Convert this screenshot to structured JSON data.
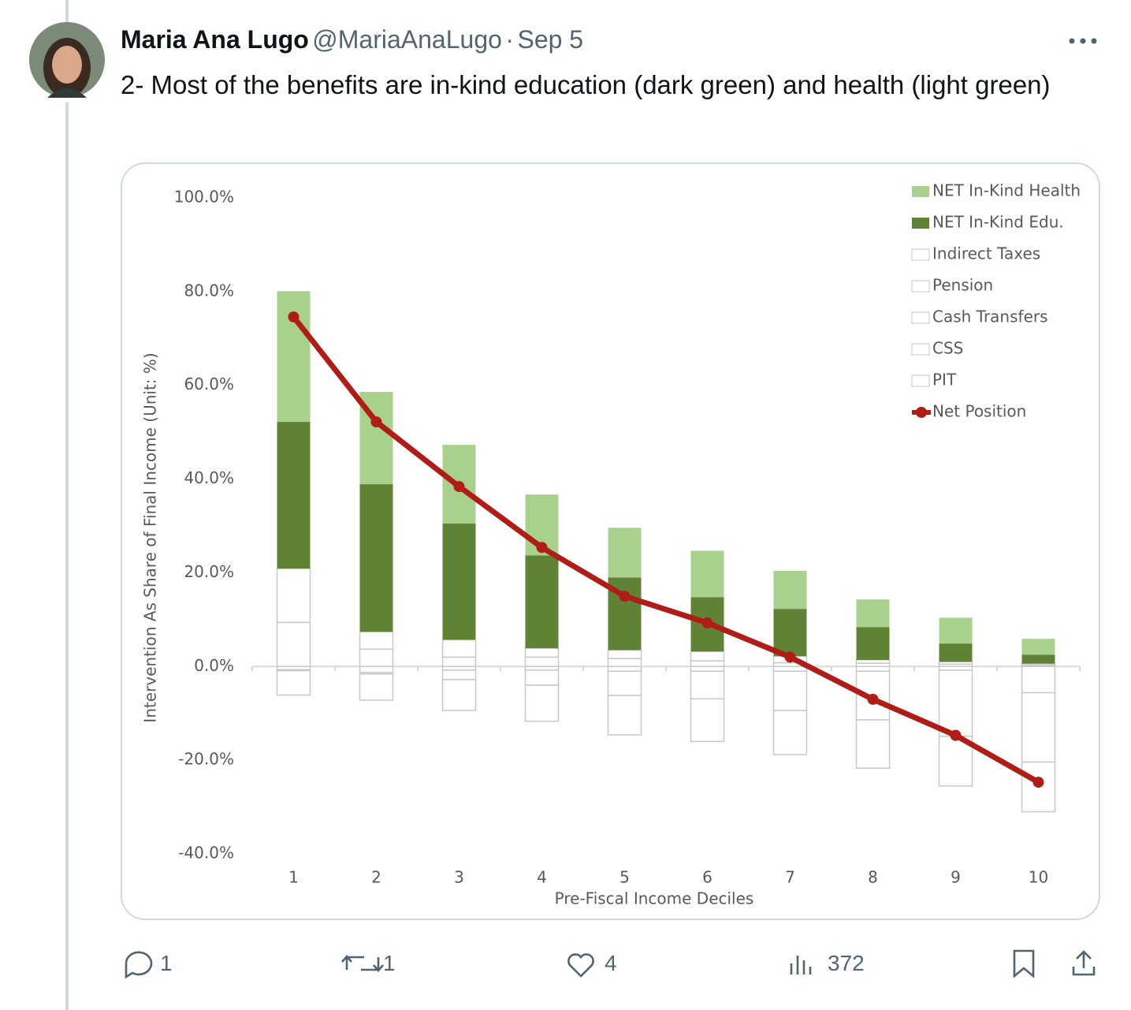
{
  "tweet": {
    "author": "Maria Ana Lugo",
    "handle": "@MariaAnaLugo",
    "separator": "·",
    "date": "Sep 5",
    "text": "2- Most of the benefits are in-kind education (dark green) and health (light green)",
    "replies": 1,
    "retweets": 1,
    "likes": 4,
    "views": 372
  },
  "chart_data": {
    "type": "bar",
    "stacked": true,
    "y_label": "Intervention As Share of Final Income (Unit: %)",
    "x_label": "Pre-Fiscal Income  Deciles",
    "categories": [
      "1",
      "2",
      "3",
      "4",
      "5",
      "6",
      "7",
      "8",
      "9",
      "10"
    ],
    "ylim": [
      -40,
      100
    ],
    "yticks": [
      {
        "value": -40,
        "label": "-40.0%"
      },
      {
        "value": -20,
        "label": "-20.0%"
      },
      {
        "value": 0,
        "label": "0.0%"
      },
      {
        "value": 20,
        "label": "20.0%"
      },
      {
        "value": 40,
        "label": "40.0%"
      },
      {
        "value": 60,
        "label": "60.0%"
      },
      {
        "value": 80,
        "label": "80.0%"
      },
      {
        "value": 100,
        "label": "100.0%"
      }
    ],
    "legend_position": "top-right",
    "series": [
      {
        "name": "NET In-Kind Health",
        "color": "#a9d18e",
        "values": [
          27.9,
          19.7,
          16.8,
          13.0,
          10.6,
          9.9,
          8.1,
          5.9,
          5.5,
          3.4
        ]
      },
      {
        "name": "NET In-Kind Edu.",
        "color": "#608234",
        "values": [
          31.3,
          31.5,
          24.8,
          19.8,
          15.5,
          11.6,
          10.1,
          7.0,
          3.9,
          1.9
        ]
      },
      {
        "name": "Indirect Taxes",
        "color": "#ffffff",
        "values": [
          -5.2,
          -5.6,
          -6.6,
          -7.7,
          -8.4,
          -9.1,
          -9.4,
          -10.3,
          -10.6,
          -10.6
        ]
      },
      {
        "name": "Pension",
        "color": "#ffffff",
        "values": [
          11.5,
          3.7,
          3.7,
          1.9,
          1.8,
          2.0,
          1.4,
          0.7,
          0.5,
          0.3
        ]
      },
      {
        "name": "Cash Transfers",
        "color": "#ffffff",
        "values": [
          9.4,
          3.7,
          2.0,
          2.0,
          1.7,
          1.2,
          0.8,
          0.7,
          0.5,
          0.3
        ]
      },
      {
        "name": "CSS",
        "color": "#ffffff",
        "values": [
          -0.2,
          -0.3,
          -2.0,
          -3.2,
          -5.2,
          -5.9,
          -8.4,
          -10.4,
          -14.1,
          -14.8
        ]
      },
      {
        "name": "PIT",
        "color": "#ffffff",
        "values": [
          -0.7,
          -1.3,
          -0.8,
          -0.8,
          -1.0,
          -1.0,
          -1.0,
          -1.0,
          -0.8,
          -5.6
        ]
      },
      {
        "name": "Net Position",
        "type": "line",
        "color": "#b01c16",
        "values": [
          74.6,
          52.2,
          38.4,
          25.4,
          15.0,
          9.3,
          2.0,
          -7.0,
          -14.7,
          -24.7
        ]
      }
    ]
  }
}
